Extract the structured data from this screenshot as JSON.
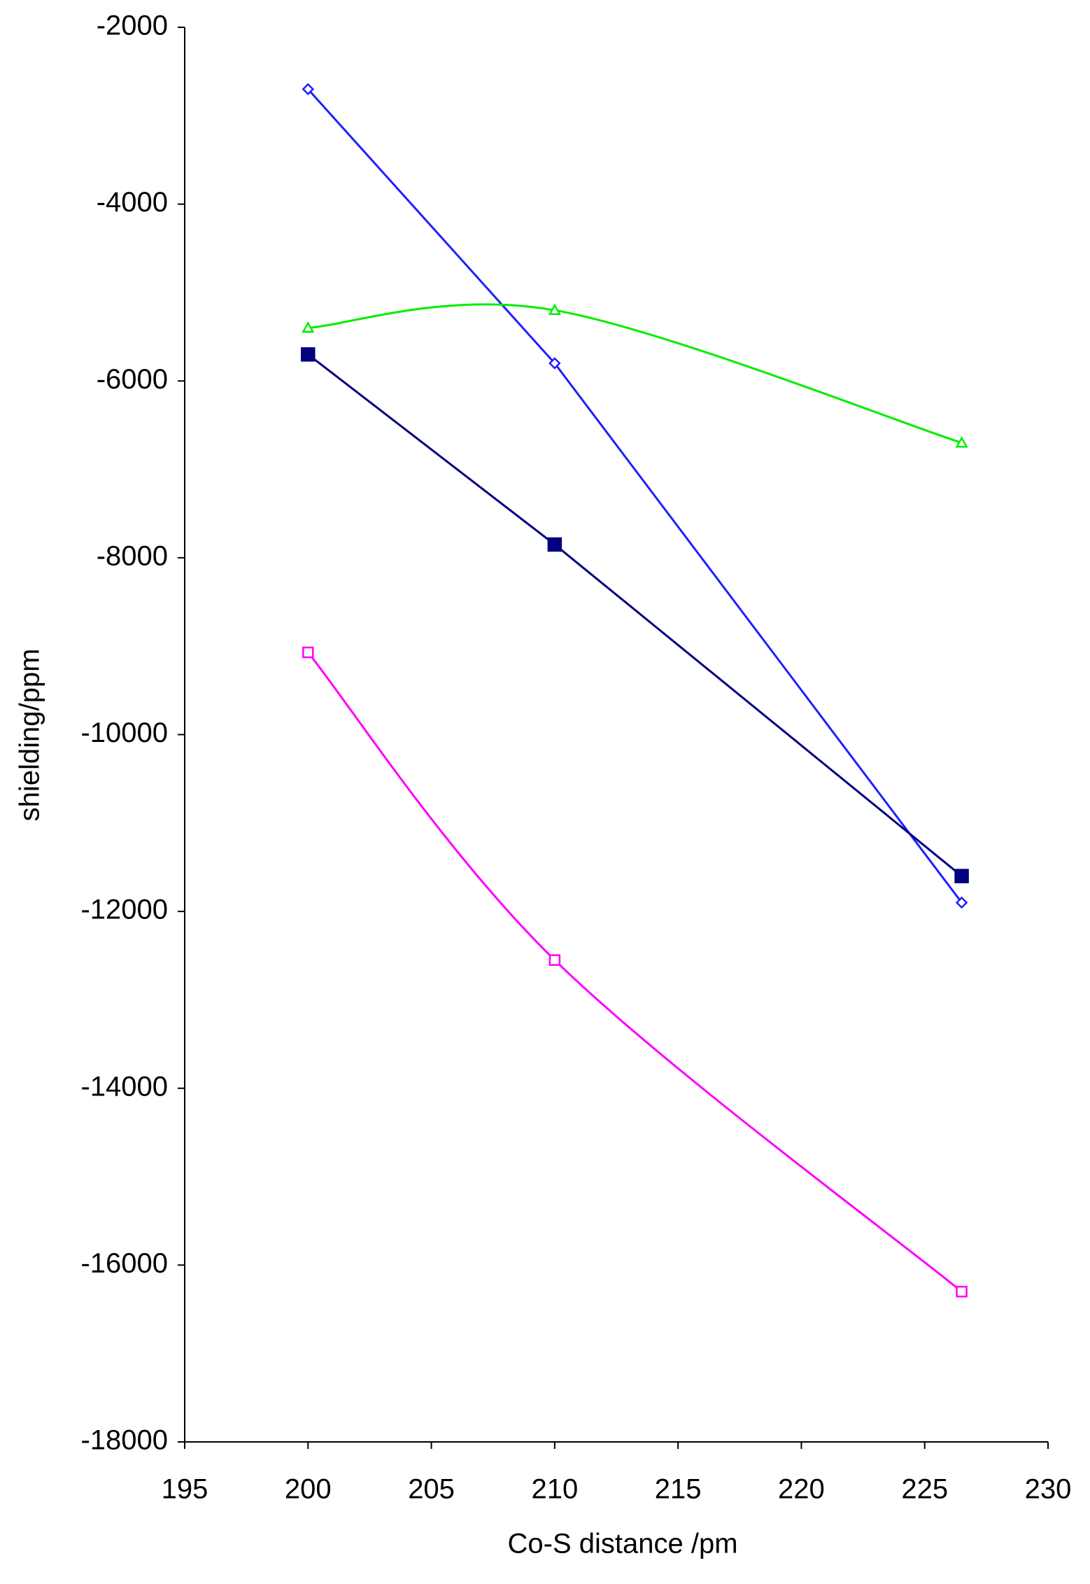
{
  "chart_data": {
    "type": "line",
    "x_label": "Co-S distance /pm",
    "y_label": "shielding/ppm",
    "xlim": [
      195,
      230
    ],
    "xticks": [
      195,
      200,
      205,
      210,
      215,
      220,
      225,
      230
    ],
    "ylim": [
      -18000,
      -2000
    ],
    "yticks": [
      -18000,
      -16000,
      -14000,
      -12000,
      -10000,
      -8000,
      -6000,
      -4000,
      -2000
    ],
    "series": [
      {
        "color": "#1f1fff",
        "marker": "open-diamond",
        "smooth": false,
        "x": [
          200,
          210,
          226.5
        ],
        "values": [
          -2700,
          -5800,
          -11900
        ]
      },
      {
        "color": "#00ee00",
        "marker": "open-triangle",
        "smooth": true,
        "x": [
          200,
          210,
          226.5
        ],
        "values": [
          -5400,
          -5200,
          -6700
        ]
      },
      {
        "color": "#000080",
        "marker": "filled-square",
        "smooth": false,
        "x": [
          200,
          210,
          226.5
        ],
        "values": [
          -5700,
          -7850,
          -11600
        ]
      },
      {
        "color": "#ff00ff",
        "marker": "open-square",
        "smooth": true,
        "x": [
          200,
          210,
          226.5
        ],
        "values": [
          -9070,
          -12550,
          -16300
        ]
      }
    ]
  }
}
